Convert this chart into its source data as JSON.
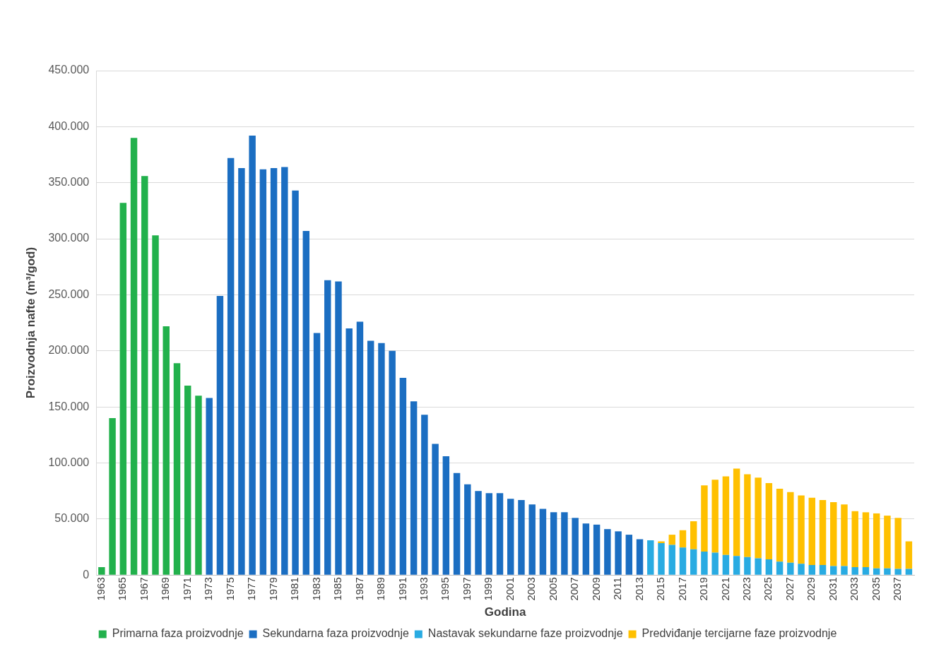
{
  "chart_data": {
    "type": "bar",
    "stacked": true,
    "xlabel": "Godina",
    "ylabel": "Proizvodnja nafte (m³/god)",
    "categories": [
      "1963",
      null,
      "1965",
      null,
      "1967",
      null,
      "1969",
      null,
      "1971",
      null,
      "1973",
      null,
      "1975",
      null,
      "1977",
      null,
      "1979",
      null,
      "1981",
      null,
      "1983",
      null,
      "1985",
      null,
      "1987",
      null,
      "1989",
      null,
      "1991",
      null,
      "1993",
      null,
      "1995",
      null,
      "1997",
      null,
      "1999",
      null,
      "2001",
      null,
      "2003",
      null,
      "2005",
      null,
      "2007",
      null,
      "2009",
      null,
      "2011",
      null,
      "2013",
      null,
      "2015",
      null,
      "2017",
      null,
      "2019",
      null,
      "2021",
      null,
      "2023",
      null,
      "2025",
      null,
      "2027",
      null,
      "2029",
      null,
      "2031",
      null,
      "2033",
      null,
      "2035",
      null,
      "2037",
      null
    ],
    "series": [
      {
        "name": "Primarna faza proizvodnje",
        "color": "#22b14c",
        "values": [
          7000,
          140000,
          332000,
          390000,
          356000,
          303000,
          222000,
          189000,
          169000,
          160000,
          null,
          null,
          null,
          null,
          null,
          null,
          null,
          null,
          null,
          null,
          null,
          null,
          null,
          null,
          null,
          null,
          null,
          null,
          null,
          null,
          null,
          null,
          null,
          null,
          null,
          null,
          null,
          null,
          null,
          null,
          null,
          null,
          null,
          null,
          null,
          null,
          null,
          null,
          null,
          null,
          null,
          null,
          null,
          null,
          null,
          null,
          null,
          null,
          null,
          null,
          null,
          null,
          null,
          null,
          null,
          null,
          null,
          null,
          null,
          null,
          null,
          null,
          null,
          null,
          null,
          null
        ]
      },
      {
        "name": "Sekundarna faza proizvodnje",
        "color": "#1b6ec2",
        "values": [
          null,
          null,
          null,
          null,
          null,
          null,
          null,
          null,
          null,
          null,
          158000,
          249000,
          372000,
          363000,
          392000,
          362000,
          363000,
          364000,
          343000,
          307000,
          216000,
          263000,
          262000,
          220000,
          226000,
          209000,
          207000,
          200000,
          176000,
          155000,
          143000,
          117000,
          106000,
          91000,
          81000,
          75000,
          73000,
          73000,
          68000,
          67000,
          63000,
          59000,
          56000,
          56000,
          51000,
          46000,
          45000,
          41000,
          39000,
          36000,
          32000,
          null,
          null,
          null,
          null,
          null,
          null,
          null,
          null,
          null,
          null,
          null,
          null,
          null,
          null,
          null,
          null,
          null,
          null,
          null,
          null,
          null,
          null,
          null,
          null,
          null
        ]
      },
      {
        "name": "Nastavak sekundarne faze proizvodnje",
        "color": "#29abe2",
        "values": [
          null,
          null,
          null,
          null,
          null,
          null,
          null,
          null,
          null,
          null,
          null,
          null,
          null,
          null,
          null,
          null,
          null,
          null,
          null,
          null,
          null,
          null,
          null,
          null,
          null,
          null,
          null,
          null,
          null,
          null,
          null,
          null,
          null,
          null,
          null,
          null,
          null,
          null,
          null,
          null,
          null,
          null,
          null,
          null,
          null,
          null,
          null,
          null,
          null,
          null,
          null,
          31000,
          28500,
          27000,
          24500,
          23000,
          21000,
          20000,
          18000,
          17000,
          16000,
          15000,
          14000,
          12000,
          11000,
          10000,
          9000,
          9000,
          8000,
          8000,
          7000,
          7000,
          6000,
          6000,
          5500,
          5500
        ]
      },
      {
        "name": "Predviđanje tercijarne faze proizvodnje",
        "color": "#ffc000",
        "values": [
          null,
          null,
          null,
          null,
          null,
          null,
          null,
          null,
          null,
          null,
          null,
          null,
          null,
          null,
          null,
          null,
          null,
          null,
          null,
          null,
          null,
          null,
          null,
          null,
          null,
          null,
          null,
          null,
          null,
          null,
          null,
          null,
          null,
          null,
          null,
          null,
          null,
          null,
          null,
          null,
          null,
          null,
          null,
          null,
          null,
          null,
          null,
          null,
          null,
          null,
          null,
          null,
          1500,
          9000,
          15500,
          25000,
          59000,
          65000,
          70000,
          78000,
          74000,
          72000,
          68000,
          65000,
          63000,
          61000,
          60000,
          58000,
          57000,
          55000,
          50000,
          49000,
          49000,
          47000,
          45500,
          24500
        ]
      }
    ],
    "ylim": [
      0,
      450000
    ],
    "yticks": [
      0,
      {
        "value": 50000,
        "label": "50.000"
      },
      {
        "value": 100000,
        "label": "100.000"
      },
      {
        "value": 150000,
        "label": "150.000"
      },
      {
        "value": 200000,
        "label": "200.000"
      },
      {
        "value": 250000,
        "label": "250.000"
      },
      {
        "value": 300000,
        "label": "300.000"
      },
      {
        "value": 350000,
        "label": "350.000"
      },
      {
        "value": 400000,
        "label": "400.000"
      },
      {
        "value": 450000,
        "label": "450.000"
      }
    ],
    "grid": "y",
    "legend": "bottom"
  }
}
